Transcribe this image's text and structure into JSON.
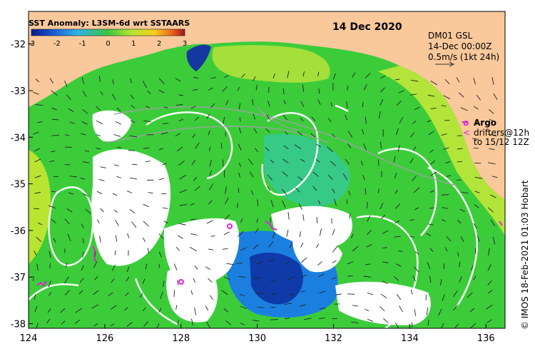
{
  "title": "SST Anomaly: L3SM-6d wrt SSTAARS",
  "date": "14 Dec 2020",
  "colorbar": {
    "ticks": [
      "-3",
      "-2",
      "-1",
      "0",
      "1",
      "2",
      "3"
    ],
    "colors": [
      "#0a1a8c",
      "#1b5fd8",
      "#2fb3e6",
      "#3cc83c",
      "#b4e633",
      "#f5d021",
      "#e8621a",
      "#a0141e"
    ]
  },
  "info": {
    "line1": "DM01 GSL",
    "line2": "14-Dec 00:00Z",
    "line3": "0.5m/s (1kt 24h)"
  },
  "legend": {
    "argo_symbol": "o",
    "argo_label": "Argo",
    "drifter_symbol": "<",
    "drifter_line1": "drifters@12h",
    "drifter_line2": "to 15/12 12Z"
  },
  "axes": {
    "lon_ticks": [
      "124",
      "126",
      "128",
      "130",
      "132",
      "134",
      "136"
    ],
    "lat_ticks": [
      "-32",
      "-33",
      "-34",
      "-35",
      "-36",
      "-37",
      "-38"
    ],
    "lon_range": [
      124,
      136.5
    ],
    "lat_range": [
      -38.1,
      -31.3
    ]
  },
  "credit": "© IMOS 18-Feb-2021 01:03 Hobart",
  "colors": {
    "land": "#f9c89b",
    "ocean_base": "#3ccc3a",
    "cloud": "#ffffff",
    "marker": "#e61ee6"
  }
}
